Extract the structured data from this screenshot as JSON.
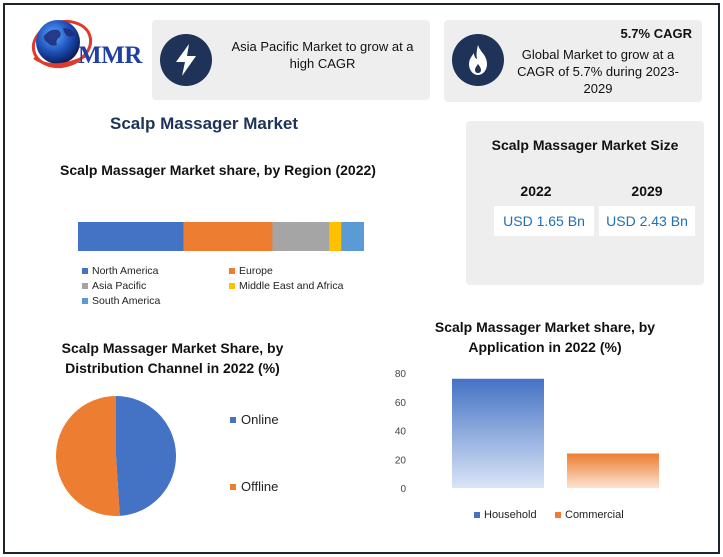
{
  "brand": {
    "logo_text": "MMR"
  },
  "banners": {
    "asia": {
      "icon": "lightning-icon",
      "text": "Asia Pacific Market to grow at a high CAGR"
    },
    "global": {
      "icon": "flame-icon",
      "cagr": "5.7% CAGR",
      "text": "Global Market to grow at a CAGR of 5.7% during 2023-2029"
    }
  },
  "market_title": "Scalp Massager Market",
  "market_size": {
    "title": "Scalp Massager Market Size",
    "years": [
      {
        "year": "2022",
        "value": "USD 1.65 Bn"
      },
      {
        "year": "2029",
        "value": "USD 2.43 Bn"
      }
    ]
  },
  "colors": {
    "north_america": "#4472c4",
    "europe": "#ed7d31",
    "asia_pacific": "#a5a5a5",
    "mea": "#ffc000",
    "south_america": "#5b9bd5",
    "navy": "#1f3358"
  },
  "chart_data": [
    {
      "type": "bar",
      "orientation": "horizontal-stacked",
      "title": "Scalp Massager Market share, by Region (2022)",
      "series": [
        {
          "name": "North America",
          "value": 37
        },
        {
          "name": "Europe",
          "value": 31
        },
        {
          "name": "Asia Pacific",
          "value": 20
        },
        {
          "name": "Middle East and Africa",
          "value": 4
        },
        {
          "name": "South America",
          "value": 8
        }
      ],
      "legend": "bottom"
    },
    {
      "type": "pie",
      "title": "Scalp Massager Market Share, by Distribution Channel in 2022 (%)",
      "slices": [
        {
          "name": "Online",
          "value": 49
        },
        {
          "name": "Offline",
          "value": 51
        }
      ],
      "legend": "right"
    },
    {
      "type": "bar",
      "title": "Scalp Massager Market share, by Application in 2022 (%)",
      "categories": [
        "Household",
        "Commercial"
      ],
      "values": [
        76,
        24
      ],
      "ylim": [
        0,
        80
      ],
      "yticks": [
        "0",
        "20",
        "40",
        "60",
        "80"
      ],
      "grid": false,
      "legend": "bottom"
    }
  ]
}
